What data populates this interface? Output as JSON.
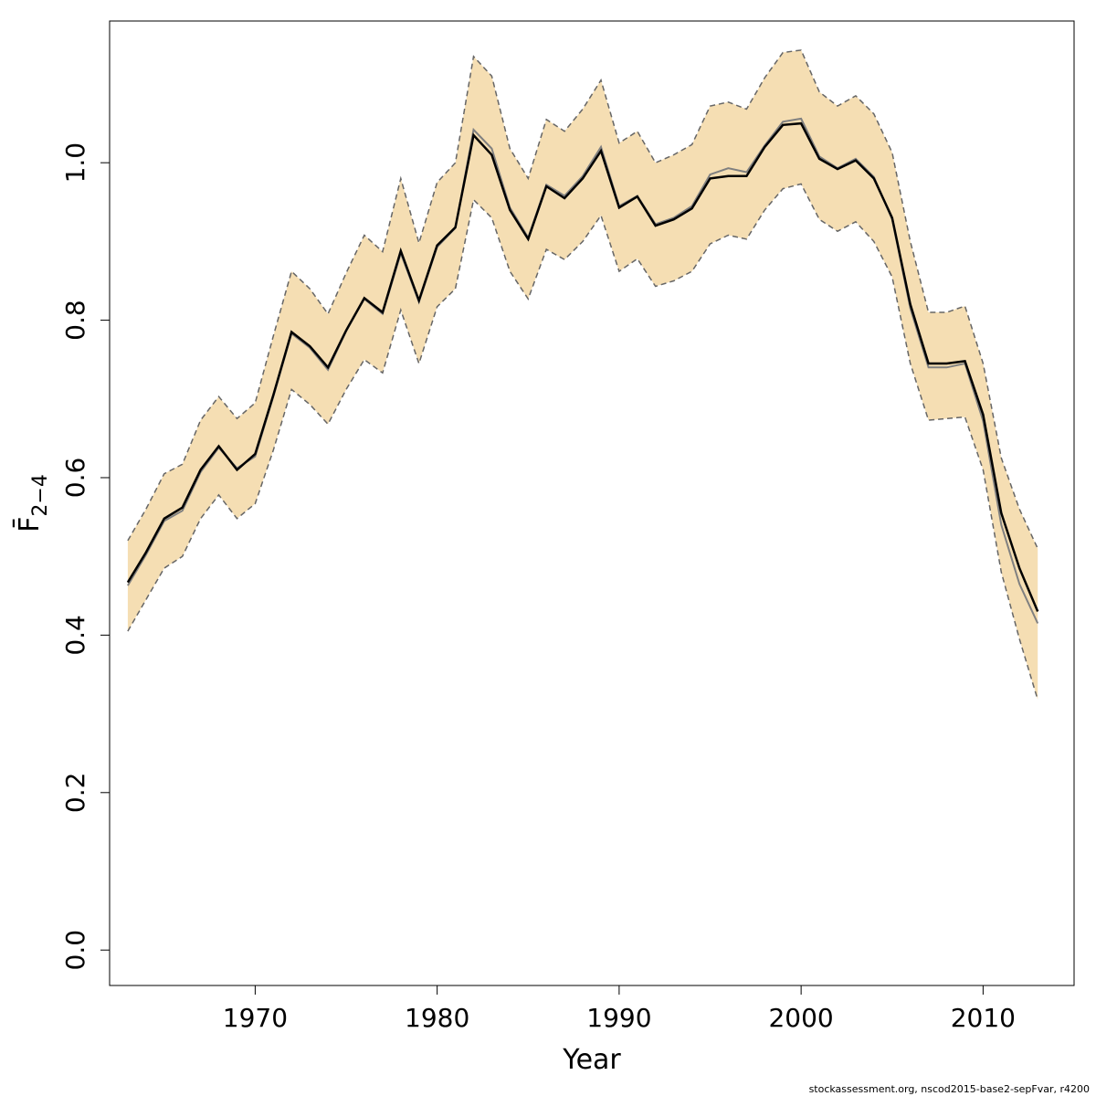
{
  "credit": "stockassessment.org, nscod2015-base2-sepFvar, r4200",
  "chart_data": {
    "type": "line",
    "xlabel": "Year",
    "ylabel": "F̄",
    "ylabel_subscript": "2−4",
    "xlim": [
      1962,
      2015
    ],
    "ylim": [
      -0.045,
      1.18
    ],
    "xticks": [
      1970,
      1980,
      1990,
      2000,
      2010
    ],
    "yticks": [
      0.0,
      0.2,
      0.4,
      0.6,
      0.8,
      1.0
    ],
    "grid": false,
    "colors": {
      "band": "#f5deb3",
      "estimate": "#000000",
      "alt_estimate": "#808080",
      "bounds": "#666666"
    },
    "x": [
      1963,
      1964,
      1965,
      1966,
      1967,
      1968,
      1969,
      1970,
      1971,
      1972,
      1973,
      1974,
      1975,
      1976,
      1977,
      1978,
      1979,
      1980,
      1981,
      1982,
      1983,
      1984,
      1985,
      1986,
      1987,
      1988,
      1989,
      1990,
      1991,
      1992,
      1993,
      1994,
      1995,
      1996,
      1997,
      1998,
      1999,
      2000,
      2001,
      2002,
      2003,
      2004,
      2005,
      2006,
      2007,
      2008,
      2009,
      2010,
      2011,
      2012,
      2013
    ],
    "series": [
      {
        "role": "estimate",
        "values": [
          0.467,
          0.505,
          0.548,
          0.562,
          0.61,
          0.64,
          0.61,
          0.63,
          0.705,
          0.785,
          0.767,
          0.74,
          0.787,
          0.828,
          0.81,
          0.888,
          0.825,
          0.895,
          0.918,
          1.035,
          1.01,
          0.94,
          0.903,
          0.97,
          0.955,
          0.98,
          1.015,
          0.943,
          0.957,
          0.92,
          0.928,
          0.942,
          0.98,
          0.983,
          0.983,
          1.02,
          1.048,
          1.05,
          1.005,
          0.992,
          1.003,
          0.98,
          0.93,
          0.82,
          0.745,
          0.745,
          0.748,
          0.68,
          0.555,
          0.485,
          0.43
        ]
      },
      {
        "role": "alt_estimate",
        "values": [
          0.463,
          0.502,
          0.545,
          0.558,
          0.607,
          0.638,
          0.612,
          0.627,
          0.703,
          0.783,
          0.765,
          0.737,
          0.786,
          0.827,
          0.808,
          0.885,
          0.823,
          0.893,
          0.917,
          1.042,
          1.018,
          0.943,
          0.905,
          0.972,
          0.958,
          0.983,
          1.02,
          0.945,
          0.958,
          0.922,
          0.93,
          0.945,
          0.985,
          0.993,
          0.988,
          1.022,
          1.052,
          1.056,
          1.008,
          0.993,
          1.005,
          0.982,
          0.928,
          0.815,
          0.74,
          0.74,
          0.745,
          0.672,
          0.54,
          0.465,
          0.415
        ]
      },
      {
        "role": "upper",
        "values": [
          0.52,
          0.56,
          0.605,
          0.617,
          0.673,
          0.703,
          0.675,
          0.695,
          0.78,
          0.862,
          0.84,
          0.808,
          0.86,
          0.908,
          0.887,
          0.98,
          0.898,
          0.975,
          1.0,
          1.135,
          1.11,
          1.018,
          0.98,
          1.055,
          1.04,
          1.068,
          1.105,
          1.025,
          1.04,
          1.0,
          1.01,
          1.023,
          1.072,
          1.077,
          1.068,
          1.108,
          1.14,
          1.143,
          1.09,
          1.072,
          1.085,
          1.062,
          1.013,
          0.9,
          0.81,
          0.81,
          0.818,
          0.745,
          0.625,
          0.56,
          0.51
        ]
      },
      {
        "role": "lower",
        "values": [
          0.405,
          0.445,
          0.485,
          0.5,
          0.548,
          0.578,
          0.548,
          0.567,
          0.635,
          0.712,
          0.693,
          0.668,
          0.712,
          0.75,
          0.733,
          0.813,
          0.745,
          0.817,
          0.84,
          0.953,
          0.93,
          0.862,
          0.827,
          0.89,
          0.877,
          0.9,
          0.933,
          0.862,
          0.878,
          0.843,
          0.85,
          0.862,
          0.897,
          0.908,
          0.903,
          0.94,
          0.967,
          0.973,
          0.928,
          0.913,
          0.925,
          0.9,
          0.855,
          0.745,
          0.673,
          0.675,
          0.677,
          0.61,
          0.48,
          0.395,
          0.318
        ]
      }
    ]
  }
}
